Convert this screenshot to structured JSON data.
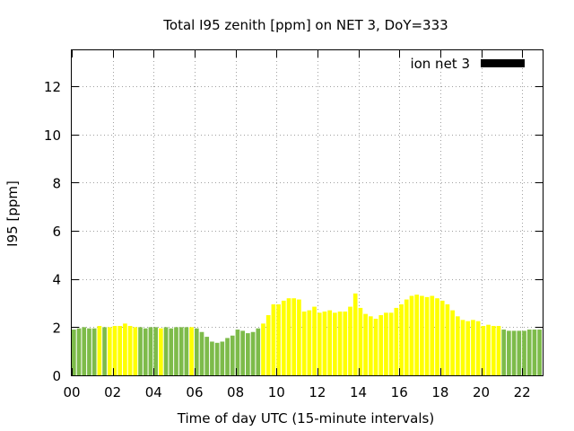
{
  "chart_data": {
    "type": "bar",
    "title": "Total I95 zenith [ppm] on NET 3, DoY=333",
    "xlabel": "Time of day UTC (15-minute intervals)",
    "ylabel": "I95 [ppm]",
    "xlim": [
      0,
      23
    ],
    "ylim": [
      0,
      13.5
    ],
    "x_ticks": [
      "00",
      "02",
      "04",
      "06",
      "08",
      "10",
      "12",
      "14",
      "16",
      "18",
      "20",
      "22"
    ],
    "y_ticks": [
      "0",
      "2",
      "4",
      "6",
      "8",
      "10",
      "12"
    ],
    "grid": true,
    "legend": {
      "position": "top-right",
      "entries": [
        {
          "label": "ion net 3",
          "color": "#000000"
        }
      ]
    },
    "colors": {
      "green": "#7dbb4a",
      "yellow": "#ffff00"
    },
    "series": [
      {
        "name": "ion net 3",
        "x_start_hours": 0,
        "interval_hours": 0.25,
        "values": [
          1.9,
          1.95,
          2.0,
          1.95,
          1.95,
          2.05,
          2.0,
          2.0,
          2.05,
          2.05,
          2.15,
          2.05,
          2.0,
          2.0,
          1.95,
          2.0,
          2.0,
          1.95,
          2.0,
          1.95,
          2.0,
          2.0,
          2.0,
          2.0,
          1.95,
          1.8,
          1.6,
          1.4,
          1.35,
          1.4,
          1.55,
          1.65,
          1.9,
          1.85,
          1.75,
          1.8,
          1.95,
          2.15,
          2.5,
          2.95,
          2.95,
          3.1,
          3.2,
          3.2,
          3.15,
          2.65,
          2.7,
          2.85,
          2.6,
          2.65,
          2.7,
          2.6,
          2.65,
          2.65,
          2.85,
          3.4,
          2.8,
          2.55,
          2.45,
          2.35,
          2.5,
          2.6,
          2.6,
          2.8,
          2.95,
          3.15,
          3.3,
          3.35,
          3.3,
          3.25,
          3.3,
          3.2,
          3.1,
          2.95,
          2.7,
          2.45,
          2.3,
          2.25,
          2.3,
          2.25,
          2.05,
          2.1,
          2.05,
          2.05,
          1.9,
          1.85,
          1.85,
          1.85,
          1.85,
          1.9,
          1.9,
          1.9
        ],
        "colors": [
          "green",
          "green",
          "green",
          "green",
          "green",
          "yellow",
          "green",
          "yellow",
          "yellow",
          "yellow",
          "yellow",
          "yellow",
          "yellow",
          "green",
          "green",
          "green",
          "green",
          "yellow",
          "green",
          "green",
          "green",
          "green",
          "green",
          "yellow",
          "green",
          "green",
          "green",
          "green",
          "green",
          "green",
          "green",
          "green",
          "green",
          "green",
          "green",
          "green",
          "green",
          "yellow",
          "yellow",
          "yellow",
          "yellow",
          "yellow",
          "yellow",
          "yellow",
          "yellow",
          "yellow",
          "yellow",
          "yellow",
          "yellow",
          "yellow",
          "yellow",
          "yellow",
          "yellow",
          "yellow",
          "yellow",
          "yellow",
          "yellow",
          "yellow",
          "yellow",
          "yellow",
          "yellow",
          "yellow",
          "yellow",
          "yellow",
          "yellow",
          "yellow",
          "yellow",
          "yellow",
          "yellow",
          "yellow",
          "yellow",
          "yellow",
          "yellow",
          "yellow",
          "yellow",
          "yellow",
          "yellow",
          "yellow",
          "yellow",
          "yellow",
          "yellow",
          "yellow",
          "yellow",
          "yellow",
          "green",
          "green",
          "green",
          "green",
          "green",
          "green",
          "green",
          "green"
        ]
      }
    ]
  }
}
